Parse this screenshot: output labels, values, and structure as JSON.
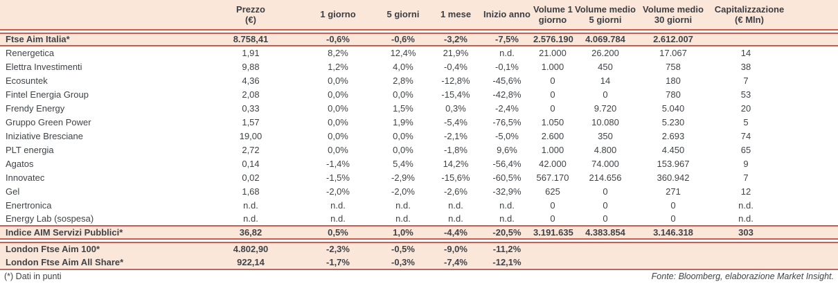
{
  "colors": {
    "accent_line": "#cb5d50",
    "highlight_row_bg": "#fbe7da",
    "text": "#3f4347"
  },
  "table": {
    "columns": [
      {
        "id": "name",
        "lines": [
          ""
        ]
      },
      {
        "id": "prezzo",
        "lines": [
          "Prezzo",
          "(€)"
        ]
      },
      {
        "id": "un-giorno",
        "lines": [
          "1 giorno"
        ]
      },
      {
        "id": "cinque-giorni",
        "lines": [
          "5 giorni"
        ]
      },
      {
        "id": "un-mese",
        "lines": [
          "1 mese"
        ]
      },
      {
        "id": "inizio-anno",
        "lines": [
          "Inizio anno"
        ]
      },
      {
        "id": "volume-1-giorno",
        "lines": [
          "Volume 1",
          "giorno"
        ]
      },
      {
        "id": "volume-medio-5",
        "lines": [
          "Volume medio",
          "5 giorni"
        ]
      },
      {
        "id": "volume-medio-30",
        "lines": [
          "Volume medio",
          "30 giorni"
        ]
      },
      {
        "id": "capitalizzazione",
        "lines": [
          "Capitalizzazione",
          "(€ Mln)"
        ]
      }
    ],
    "rows": [
      {
        "type": "index",
        "label": "Ftse Aim Italia*",
        "values": [
          "8.758,41",
          "-0,6%",
          "-0,6%",
          "-3,2%",
          "-7,5%",
          "2.576.190",
          "4.069.784",
          "2.612.007",
          ""
        ]
      },
      {
        "type": "stock",
        "label": "Renergetica",
        "values": [
          "1,91",
          "8,2%",
          "12,4%",
          "21,9%",
          "n.d.",
          "21.000",
          "26.200",
          "17.067",
          "14"
        ]
      },
      {
        "type": "stock",
        "label": "Elettra Investimenti",
        "values": [
          "9,88",
          "1,2%",
          "4,0%",
          "-0,4%",
          "-0,1%",
          "1.000",
          "450",
          "758",
          "38"
        ]
      },
      {
        "type": "stock",
        "label": "Ecosuntek",
        "values": [
          "4,36",
          "0,0%",
          "2,8%",
          "-12,8%",
          "-45,6%",
          "0",
          "14",
          "180",
          "7"
        ]
      },
      {
        "type": "stock",
        "label": "Fintel Energia Group",
        "values": [
          "2,08",
          "0,0%",
          "0,0%",
          "-15,4%",
          "-42,8%",
          "0",
          "0",
          "780",
          "53"
        ]
      },
      {
        "type": "stock",
        "label": "Frendy Energy",
        "values": [
          "0,33",
          "0,0%",
          "1,5%",
          "0,3%",
          "-2,4%",
          "0",
          "9.720",
          "5.040",
          "20"
        ]
      },
      {
        "type": "stock",
        "label": "Gruppo Green Power",
        "values": [
          "1,57",
          "0,0%",
          "1,9%",
          "-5,4%",
          "-76,5%",
          "1.050",
          "10.080",
          "5.230",
          "5"
        ]
      },
      {
        "type": "stock",
        "label": "Iniziative Bresciane",
        "values": [
          "19,00",
          "0,0%",
          "0,0%",
          "-2,1%",
          "-5,0%",
          "2.600",
          "350",
          "2.693",
          "74"
        ]
      },
      {
        "type": "stock",
        "label": "PLT energia",
        "values": [
          "2,72",
          "0,0%",
          "0,0%",
          "-1,8%",
          "9,6%",
          "1.000",
          "4.800",
          "4.450",
          "65"
        ]
      },
      {
        "type": "stock",
        "label": "Agatos",
        "values": [
          "0,14",
          "-1,4%",
          "5,4%",
          "14,2%",
          "-56,4%",
          "42.000",
          "74.000",
          "153.967",
          "9"
        ]
      },
      {
        "type": "stock",
        "label": "Innovatec",
        "values": [
          "0,02",
          "-1,5%",
          "-2,9%",
          "-15,6%",
          "-60,5%",
          "567.170",
          "214.656",
          "360.942",
          "7"
        ]
      },
      {
        "type": "stock",
        "label": "Gel",
        "values": [
          "1,68",
          "-2,0%",
          "-2,0%",
          "-2,6%",
          "-32,9%",
          "625",
          "0",
          "271",
          "12"
        ]
      },
      {
        "type": "stock",
        "label": "Enertronica",
        "values": [
          "n.d.",
          "n.d.",
          "n.d.",
          "n.d.",
          "n.d.",
          "0",
          "0",
          "0",
          "n.d."
        ]
      },
      {
        "type": "stock",
        "label": "Energy Lab (sospesa)",
        "values": [
          "n.d.",
          "n.d.",
          "n.d.",
          "n.d.",
          "n.d.",
          "0",
          "0",
          "0",
          "n.d."
        ]
      },
      {
        "type": "index",
        "label": "Indice AIM Servizi Pubblici*",
        "values": [
          "36,82",
          "0,5%",
          "1,0%",
          "-4,4%",
          "-20,5%",
          "3.191.635",
          "4.383.854",
          "3.146.318",
          "303"
        ]
      },
      {
        "type": "index",
        "label": "London Ftse Aim 100*",
        "values": [
          "4.802,90",
          "-2,3%",
          "-0,5%",
          "-9,0%",
          "-11,2%",
          "",
          "",
          "",
          ""
        ]
      },
      {
        "type": "index",
        "label": "London Ftse Aim All Share*",
        "values": [
          "922,14",
          "-1,7%",
          "-0,3%",
          "-7,4%",
          "-12,1%",
          "",
          "",
          "",
          ""
        ]
      }
    ]
  },
  "footer": {
    "note": "(*) Dati in punti",
    "source": "Fonte: Bloomberg, elaborazione Market Insight."
  }
}
